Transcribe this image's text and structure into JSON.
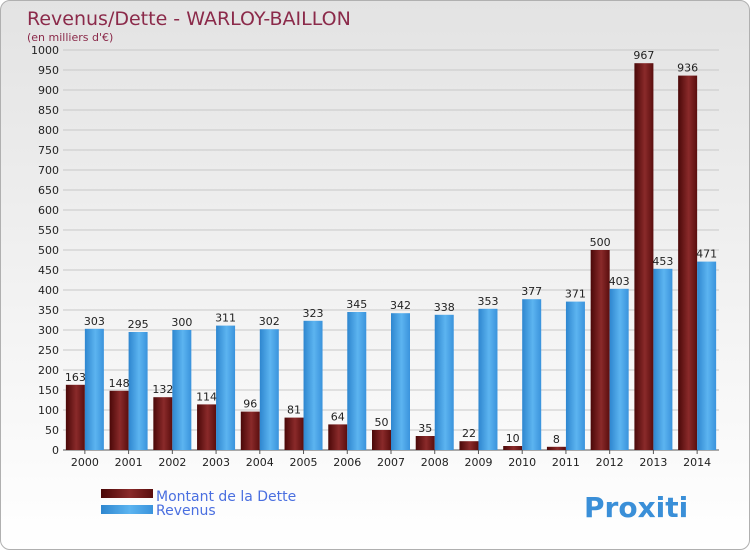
{
  "chart_data": {
    "type": "bar",
    "title": "Revenus/Dette - WARLOY-BAILLON",
    "subtitle": "(en milliers d'€)",
    "categories": [
      "2000",
      "2001",
      "2002",
      "2003",
      "2004",
      "2005",
      "2006",
      "2007",
      "2008",
      "2009",
      "2010",
      "2011",
      "2012",
      "2013",
      "2014"
    ],
    "series": [
      {
        "name": "Montant de la Dette",
        "color": "#7a1c1c",
        "values": [
          163,
          148,
          132,
          114,
          96,
          81,
          64,
          50,
          35,
          22,
          10,
          8,
          500,
          967,
          936
        ]
      },
      {
        "name": "Revenus",
        "color": "#4aa3e6",
        "values": [
          303,
          295,
          300,
          311,
          302,
          323,
          345,
          342,
          338,
          353,
          377,
          371,
          403,
          453,
          471
        ]
      }
    ],
    "ylim": [
      0,
      1000
    ],
    "ytick_step": 50,
    "grid": true,
    "legend": "bottom-left"
  },
  "logo": {
    "text": "Proxiti"
  }
}
